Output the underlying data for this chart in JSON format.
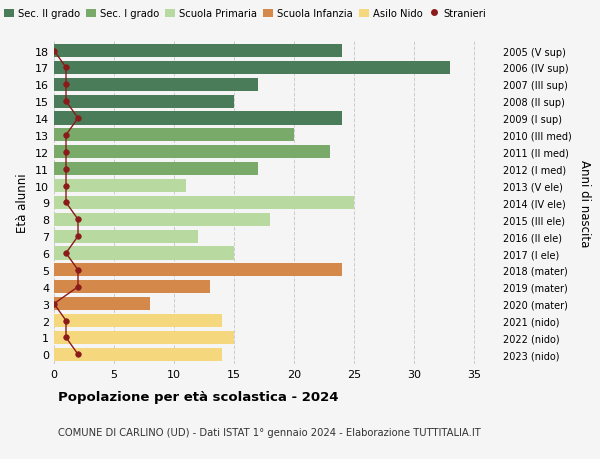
{
  "ages": [
    18,
    17,
    16,
    15,
    14,
    13,
    12,
    11,
    10,
    9,
    8,
    7,
    6,
    5,
    4,
    3,
    2,
    1,
    0
  ],
  "right_labels": [
    "2005 (V sup)",
    "2006 (IV sup)",
    "2007 (III sup)",
    "2008 (II sup)",
    "2009 (I sup)",
    "2010 (III med)",
    "2011 (II med)",
    "2012 (I med)",
    "2013 (V ele)",
    "2014 (IV ele)",
    "2015 (III ele)",
    "2016 (II ele)",
    "2017 (I ele)",
    "2018 (mater)",
    "2019 (mater)",
    "2020 (mater)",
    "2021 (nido)",
    "2022 (nido)",
    "2023 (nido)"
  ],
  "bar_values": [
    24,
    33,
    17,
    15,
    24,
    20,
    23,
    17,
    11,
    25,
    18,
    12,
    15,
    24,
    13,
    8,
    14,
    15,
    14
  ],
  "bar_colors": [
    "#4a7c59",
    "#4a7c59",
    "#4a7c59",
    "#4a7c59",
    "#4a7c59",
    "#7aaa6a",
    "#7aaa6a",
    "#7aaa6a",
    "#b8d9a0",
    "#b8d9a0",
    "#b8d9a0",
    "#b8d9a0",
    "#b8d9a0",
    "#d4884a",
    "#d4884a",
    "#d4884a",
    "#f5d77e",
    "#f5d77e",
    "#f5d77e"
  ],
  "stranieri_values": [
    0,
    1,
    1,
    1,
    2,
    1,
    1,
    1,
    1,
    1,
    2,
    2,
    1,
    2,
    2,
    0,
    1,
    1,
    2
  ],
  "stranieri_color": "#8b1a1a",
  "xlim": [
    0,
    37
  ],
  "xticks": [
    0,
    5,
    10,
    15,
    20,
    25,
    30,
    35
  ],
  "ylabel_left": "Età alunni",
  "ylabel_right": "Anni di nascita",
  "title": "Popolazione per età scolastica - 2024",
  "subtitle": "COMUNE DI CARLINO (UD) - Dati ISTAT 1° gennaio 2024 - Elaborazione TUTTITALIA.IT",
  "legend_labels": [
    "Sec. II grado",
    "Sec. I grado",
    "Scuola Primaria",
    "Scuola Infanzia",
    "Asilo Nido",
    "Stranieri"
  ],
  "legend_colors": [
    "#4a7c59",
    "#7aaa6a",
    "#b8d9a0",
    "#d4884a",
    "#f5d77e",
    "#8b1a1a"
  ],
  "bg_color": "#f5f5f5",
  "grid_color": "#cccccc",
  "bar_height": 0.78
}
